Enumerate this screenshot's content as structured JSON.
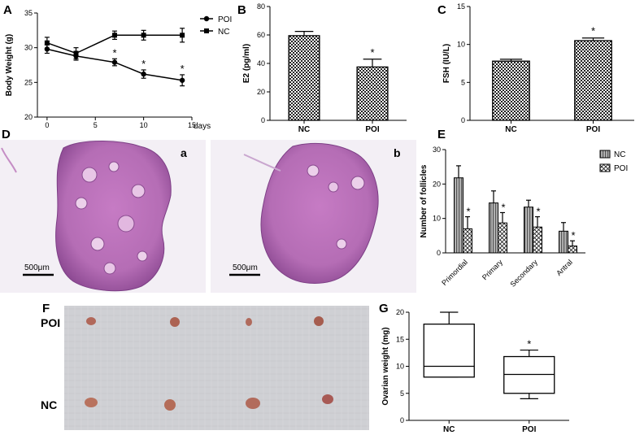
{
  "panels": {
    "A": "A",
    "B": "B",
    "C": "C",
    "D": "D",
    "E": "E",
    "F": "F",
    "G": "G"
  },
  "micrographs": {
    "label_a": "a",
    "label_b": "b",
    "scale_a": "500μm",
    "scale_b": "500μm"
  },
  "photo": {
    "row_top": "POI",
    "row_bottom": "NC"
  },
  "chart_data": [
    {
      "id": "A",
      "type": "line",
      "ylabel": "Body Weight (g)",
      "xlabel": "days",
      "x": [
        0,
        3,
        7,
        10,
        14
      ],
      "xticks": [
        0,
        5,
        10,
        15
      ],
      "yticks": [
        20,
        25,
        30,
        35
      ],
      "ylim": [
        20,
        35
      ],
      "xlim": [
        -1,
        15
      ],
      "legend_position": "top-right",
      "series": [
        {
          "name": "POI",
          "marker": "circle",
          "values": [
            29.8,
            28.8,
            27.9,
            26.2,
            25.3
          ],
          "err": [
            0.6,
            0.6,
            0.5,
            0.6,
            0.8
          ]
        },
        {
          "name": "NC",
          "marker": "square",
          "values": [
            30.7,
            29.2,
            31.8,
            31.8,
            31.8
          ],
          "err": [
            0.8,
            0.8,
            0.6,
            0.7,
            1.0
          ]
        }
      ],
      "annotations": [
        "*",
        "*",
        "*"
      ],
      "annotation_x": [
        7,
        10,
        14
      ]
    },
    {
      "id": "B",
      "type": "bar",
      "ylabel": "E2 (pg/ml)",
      "categories": [
        "NC",
        "POI"
      ],
      "values": [
        59.5,
        37.5
      ],
      "err": [
        3.0,
        5.5
      ],
      "ylim": [
        0,
        80
      ],
      "yticks": [
        0,
        20,
        40,
        60,
        80
      ],
      "annotations": [
        "",
        "*"
      ]
    },
    {
      "id": "C",
      "type": "bar",
      "ylabel": "FSH (IU/L)",
      "categories": [
        "NC",
        "POI"
      ],
      "values": [
        7.8,
        10.5
      ],
      "err": [
        0.25,
        0.35
      ],
      "ylim": [
        0,
        15
      ],
      "yticks": [
        0,
        5,
        10,
        15
      ],
      "annotations": [
        "",
        "*"
      ]
    },
    {
      "id": "E",
      "type": "bar",
      "ylabel": "Number of follicles",
      "categories": [
        "Primordial",
        "Primary",
        "Secondary",
        "Antral"
      ],
      "ylim": [
        0,
        30
      ],
      "yticks": [
        0,
        10,
        20,
        30
      ],
      "legend_position": "right",
      "series": [
        {
          "name": "NC",
          "values": [
            21.8,
            14.5,
            13.3,
            6.3
          ],
          "err": [
            3.5,
            3.5,
            2.0,
            2.5
          ]
        },
        {
          "name": "POI",
          "values": [
            7.0,
            8.7,
            7.5,
            2.0
          ],
          "err": [
            3.5,
            3.0,
            3.0,
            1.5
          ]
        }
      ],
      "annotations": [
        "*",
        "*",
        "*",
        "*"
      ]
    },
    {
      "id": "G",
      "type": "box",
      "ylabel": "Ovarian weight (mg)",
      "categories": [
        "NC",
        "POI"
      ],
      "ylim": [
        0,
        20
      ],
      "yticks": [
        0,
        5,
        10,
        15,
        20
      ],
      "boxes": [
        {
          "min": 8.0,
          "q1": 8.0,
          "median": 10.0,
          "q3": 17.8,
          "max": 20.0
        },
        {
          "min": 4.0,
          "q1": 5.0,
          "median": 8.5,
          "q3": 11.8,
          "max": 13.0
        }
      ],
      "annotations": [
        "",
        "*"
      ]
    }
  ]
}
